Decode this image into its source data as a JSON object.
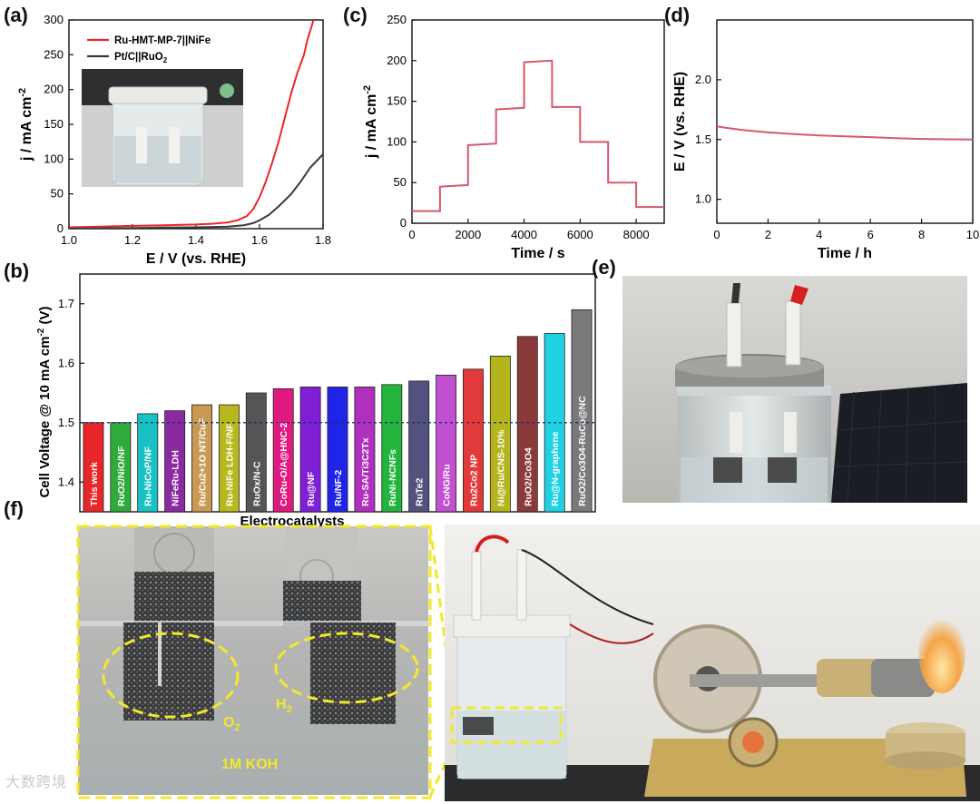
{
  "panels": {
    "a": "(a)",
    "b": "(b)",
    "c": "(c)",
    "d": "(d)",
    "e": "(e)",
    "f": "(f)"
  },
  "chart_data": [
    {
      "id": "a",
      "type": "line",
      "xlabel": "E / V (vs. RHE)",
      "ylabel": "j / mA cm",
      "ylabel_sup": "-2",
      "xlim": [
        1.0,
        1.8
      ],
      "ylim": [
        0,
        300
      ],
      "xticks": [
        1.0,
        1.2,
        1.4,
        1.6,
        1.8
      ],
      "yticks": [
        0,
        50,
        100,
        150,
        200,
        250,
        300
      ],
      "legend": "top-left",
      "series": [
        {
          "name": "Ru-HMT-MP-7||NiFe",
          "color": "#e8262a",
          "x": [
            1.0,
            1.1,
            1.2,
            1.3,
            1.4,
            1.45,
            1.5,
            1.53,
            1.56,
            1.58,
            1.6,
            1.62,
            1.64,
            1.66,
            1.68,
            1.7,
            1.72,
            1.74,
            1.75,
            1.76,
            1.77
          ],
          "y": [
            2,
            3,
            4,
            5,
            6,
            7,
            9,
            12,
            18,
            28,
            45,
            68,
            95,
            125,
            160,
            195,
            225,
            250,
            270,
            285,
            300
          ]
        },
        {
          "name": "Pt/C||RuO",
          "name_sub": "2",
          "color": "#3a3a3a",
          "x": [
            1.0,
            1.1,
            1.2,
            1.3,
            1.4,
            1.5,
            1.55,
            1.58,
            1.6,
            1.63,
            1.66,
            1.7,
            1.73,
            1.76,
            1.8
          ],
          "y": [
            0,
            0.5,
            1,
            1.5,
            2,
            3,
            5,
            8,
            12,
            20,
            32,
            50,
            68,
            88,
            107
          ]
        }
      ],
      "inset_photo": "electrolyzer-cell-photo"
    },
    {
      "id": "c",
      "type": "line",
      "xlabel": "Time / s",
      "ylabel": "j / mA cm",
      "ylabel_sup": "-2",
      "xlim": [
        0,
        9000
      ],
      "ylim": [
        0,
        250
      ],
      "xticks": [
        0,
        2000,
        4000,
        6000,
        8000
      ],
      "yticks": [
        0,
        50,
        100,
        150,
        200,
        250
      ],
      "series": [
        {
          "name": "",
          "color": "#d45a6e",
          "x": [
            0,
            1000,
            1000,
            2000,
            2000,
            3000,
            3000,
            4000,
            4000,
            5000,
            5000,
            6000,
            6000,
            7000,
            7000,
            8000,
            8000,
            9000
          ],
          "y": [
            15,
            15,
            45,
            47,
            96,
            98,
            140,
            142,
            198,
            200,
            143,
            143,
            100,
            100,
            50,
            50,
            20,
            20
          ]
        }
      ]
    },
    {
      "id": "d",
      "type": "line",
      "xlabel": "Time / h",
      "ylabel": "E / V (vs. RHE)",
      "xlim": [
        0,
        10
      ],
      "ylim": [
        0.8,
        2.5
      ],
      "xticks": [
        0,
        2,
        4,
        6,
        8,
        10
      ],
      "yticks": [
        1.0,
        1.5,
        2.0
      ],
      "series": [
        {
          "name": "",
          "color": "#d45a6e",
          "x": [
            0,
            0.3,
            1,
            2,
            3,
            4,
            5,
            6,
            7,
            8,
            9,
            10
          ],
          "y": [
            1.61,
            1.6,
            1.58,
            1.56,
            1.545,
            1.535,
            1.527,
            1.52,
            1.512,
            1.505,
            1.502,
            1.5
          ]
        }
      ]
    },
    {
      "id": "b",
      "type": "bar",
      "xlabel": "Electrocatalysts",
      "ylabel": "Cell Voltage @ 10 mA cm",
      "ylabel_sup": "-2",
      "ylabel_end": " (V)",
      "ylim": [
        1.35,
        1.75
      ],
      "yticks": [
        1.4,
        1.5,
        1.6,
        1.7
      ],
      "reference_line": 1.5,
      "categories": [
        "This work",
        "RuO2/NiO/NF",
        "Ru-NiCoP/NF",
        "NiFeRu-LDH",
        "Ru/Cu2+1O NT/CuF",
        "Ru-NiFe LDH-F/NF",
        "RuOx/N-C",
        "CoRu-O/A@HNC-2",
        "Ru@NF",
        "Ru/NF-2",
        "Ru-SA/Ti3C2Tx",
        "RuNi-NCNFs",
        "RuTe2",
        "CoNG/Ru",
        "Ru2Co2 NP",
        "Ni@Ru/CNS-10%",
        "RuO2/Co3O4",
        "Ru@N-graphene",
        "RuO2/Co3O4-RuCo@NC"
      ],
      "values": [
        1.5,
        1.5,
        1.515,
        1.52,
        1.53,
        1.53,
        1.55,
        1.557,
        1.56,
        1.56,
        1.56,
        1.564,
        1.57,
        1.58,
        1.59,
        1.612,
        1.645,
        1.65,
        1.69
      ],
      "colors": [
        "#e8262a",
        "#2eab3a",
        "#18c2c2",
        "#8a2aa0",
        "#c89a54",
        "#b8b81e",
        "#555555",
        "#e0197f",
        "#7f1fd6",
        "#1f24e8",
        "#b02fbf",
        "#22b43c",
        "#52527e",
        "#c34fd1",
        "#e23a3a",
        "#b4b41d",
        "#8b3a3a",
        "#1fd1e3",
        "#7a7a7a"
      ]
    }
  ],
  "photos": {
    "e": "electrolyzer-with-solar-panel",
    "f_left_labels": {
      "o2": "O",
      "o2_sub": "2",
      "h2": "H",
      "h2_sub": "2",
      "koh": "1M KOH"
    },
    "f_right": "electrolyzer-and-stirling-engine"
  },
  "watermark": "大数跨境"
}
